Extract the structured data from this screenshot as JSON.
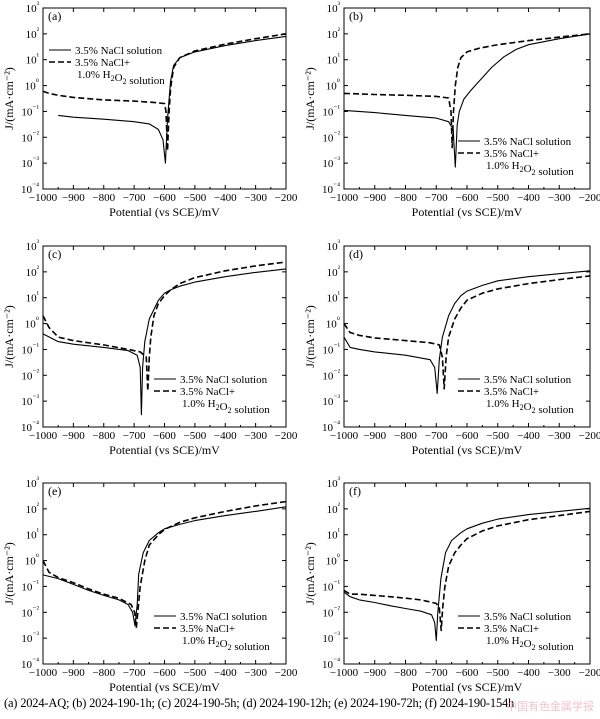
{
  "chart_data": [
    {
      "type": "line",
      "panel_label": "(a)",
      "xlabel": "Potential (vs SCE)/mV",
      "ylabel": "J/(mA·cm⁻²)",
      "xlim": [
        -1000,
        -200
      ],
      "ylim_log10": [
        -4,
        3
      ],
      "x_ticks": [
        "−1000",
        "−900",
        "−800",
        "−700",
        "−600",
        "−500",
        "−400",
        "−300",
        "−200"
      ],
      "y_ticks": [
        "10⁻⁴",
        "10⁻³",
        "10⁻²",
        "10⁻¹",
        "10⁰",
        "10¹",
        "10²",
        "10³"
      ],
      "legend_position": "top-left",
      "series": [
        {
          "name": "3.5% NaCl solution",
          "style": "solid",
          "x": [
            -950,
            -900,
            -800,
            -700,
            -650,
            -620,
            -605,
            -597,
            -590,
            -585,
            -580,
            -570,
            -550,
            -500,
            -400,
            -300,
            -200
          ],
          "y": [
            0.07,
            0.06,
            0.05,
            0.04,
            0.033,
            0.02,
            0.008,
            0.001,
            0.05,
            0.3,
            1.5,
            6,
            12,
            20,
            35,
            55,
            80
          ]
        },
        {
          "name": "3.5% NaCl+ 1.0% H₂O₂ solution",
          "style": "dashed",
          "x": [
            -1000,
            -980,
            -950,
            -900,
            -800,
            -700,
            -630,
            -600,
            -595,
            -590,
            -585,
            -580,
            -570,
            -550,
            -500,
            -400,
            -300,
            -200
          ],
          "y": [
            0.6,
            0.5,
            0.42,
            0.35,
            0.28,
            0.25,
            0.22,
            0.2,
            0.1,
            0.003,
            0.1,
            0.8,
            5,
            12,
            22,
            40,
            65,
            100
          ]
        }
      ]
    },
    {
      "type": "line",
      "panel_label": "(b)",
      "xlabel": "Potential (vs SCE)/mV",
      "ylabel": "J/(mA·cm⁻²)",
      "xlim": [
        -1000,
        -200
      ],
      "ylim_log10": [
        -4,
        3
      ],
      "x_ticks": [
        "−1000",
        "−900",
        "−800",
        "−700",
        "−600",
        "−500",
        "−400",
        "−300",
        "−200"
      ],
      "y_ticks": [
        "10⁻⁴",
        "10⁻³",
        "10⁻²",
        "10⁻¹",
        "10⁰",
        "10¹",
        "10²",
        "10³"
      ],
      "legend_position": "bottom-right",
      "series": [
        {
          "name": "3.5% NaCl solution",
          "style": "solid",
          "x": [
            -1000,
            -900,
            -800,
            -700,
            -660,
            -645,
            -638,
            -632,
            -625,
            -610,
            -590,
            -560,
            -520,
            -480,
            -440,
            -400,
            -300,
            -200
          ],
          "y": [
            0.11,
            0.09,
            0.07,
            0.055,
            0.04,
            0.02,
            0.0007,
            0.03,
            0.1,
            0.3,
            0.6,
            1.5,
            5,
            13,
            25,
            38,
            65,
            100
          ]
        },
        {
          "name": "3.5% NaCl+ 1.0% H₂O₂ solution",
          "style": "dashed",
          "x": [
            -1000,
            -900,
            -800,
            -700,
            -660,
            -652,
            -648,
            -644,
            -638,
            -630,
            -620,
            -600,
            -560,
            -500,
            -400,
            -300,
            -200
          ],
          "y": [
            0.5,
            0.45,
            0.42,
            0.38,
            0.33,
            0.1,
            0.004,
            0.1,
            1,
            5,
            12,
            20,
            28,
            38,
            55,
            75,
            100
          ]
        }
      ]
    },
    {
      "type": "line",
      "panel_label": "(c)",
      "xlabel": "Potential (vs SCE)/mV",
      "ylabel": "J/(mA·cm⁻²)",
      "xlim": [
        -1000,
        -200
      ],
      "ylim_log10": [
        -4,
        3
      ],
      "x_ticks": [
        "−1000",
        "−900",
        "−800",
        "−700",
        "−600",
        "−500",
        "−400",
        "−300",
        "−200"
      ],
      "y_ticks": [
        "10⁻⁴",
        "10⁻³",
        "10⁻²",
        "10⁻¹",
        "10⁰",
        "10¹",
        "10²",
        "10³"
      ],
      "legend_position": "bottom-right",
      "series": [
        {
          "name": "3.5% NaCl solution",
          "style": "solid",
          "x": [
            -1000,
            -950,
            -900,
            -800,
            -720,
            -690,
            -680,
            -676,
            -672,
            -665,
            -650,
            -620,
            -600,
            -580,
            -550,
            -500,
            -400,
            -300,
            -200
          ],
          "y": [
            0.4,
            0.2,
            0.16,
            0.12,
            0.09,
            0.06,
            0.02,
            0.0003,
            0.02,
            0.2,
            1.5,
            8,
            15,
            20,
            28,
            40,
            65,
            95,
            130
          ]
        },
        {
          "name": "3.5% NaCl+ 1.0% H₂O₂ solution",
          "style": "dashed",
          "x": [
            -1000,
            -980,
            -950,
            -900,
            -800,
            -720,
            -680,
            -660,
            -655,
            -650,
            -645,
            -635,
            -620,
            -600,
            -580,
            -550,
            -500,
            -400,
            -300,
            -200
          ],
          "y": [
            2,
            0.7,
            0.3,
            0.22,
            0.15,
            0.1,
            0.08,
            0.05,
            0.0025,
            0.05,
            0.3,
            2,
            6,
            12,
            20,
            35,
            60,
            110,
            170,
            240
          ]
        }
      ]
    },
    {
      "type": "line",
      "panel_label": "(d)",
      "xlabel": "Potential (vs SCE)/mV",
      "ylabel": "J/(mA·cm⁻²)",
      "xlim": [
        -1000,
        -200
      ],
      "ylim_log10": [
        -4,
        3
      ],
      "x_ticks": [
        "−1000",
        "−900",
        "−800",
        "−700",
        "−600",
        "−500",
        "−400",
        "−300",
        "−200"
      ],
      "y_ticks": [
        "10⁻⁴",
        "10⁻³",
        "10⁻²",
        "10⁻¹",
        "10⁰",
        "10¹",
        "10²",
        "10³"
      ],
      "legend_position": "bottom-right",
      "series": [
        {
          "name": "3.5% NaCl solution",
          "style": "solid",
          "x": [
            -1000,
            -980,
            -950,
            -900,
            -800,
            -720,
            -705,
            -697,
            -690,
            -680,
            -660,
            -640,
            -620,
            -600,
            -550,
            -500,
            -400,
            -300,
            -200
          ],
          "y": [
            0.3,
            0.12,
            0.1,
            0.08,
            0.06,
            0.04,
            0.02,
            0.002,
            0.04,
            0.3,
            2,
            6,
            12,
            18,
            30,
            45,
            65,
            85,
            110
          ]
        },
        {
          "name": "3.5% NaCl+ 1.0% H₂O₂ solution",
          "style": "dashed",
          "x": [
            -1000,
            -980,
            -950,
            -900,
            -800,
            -720,
            -690,
            -680,
            -674,
            -668,
            -660,
            -640,
            -620,
            -600,
            -550,
            -500,
            -400,
            -300,
            -200
          ],
          "y": [
            1,
            0.45,
            0.35,
            0.28,
            0.22,
            0.18,
            0.15,
            0.05,
            0.003,
            0.05,
            0.3,
            1.5,
            4,
            8,
            15,
            22,
            35,
            50,
            70
          ]
        }
      ]
    },
    {
      "type": "line",
      "panel_label": "(e)",
      "xlabel": "Potential (vs SCE)/mV",
      "ylabel": "J/(mA·cm⁻²)",
      "xlim": [
        -1000,
        -200
      ],
      "ylim_log10": [
        -4,
        3
      ],
      "x_ticks": [
        "−1000",
        "−900",
        "−800",
        "−700",
        "−600",
        "−500",
        "−400",
        "−300",
        "−200"
      ],
      "y_ticks": [
        "10⁻⁴",
        "10⁻³",
        "10⁻²",
        "10⁻¹",
        "10⁰",
        "10¹",
        "10²",
        "10³"
      ],
      "legend_position": "bottom-right",
      "series": [
        {
          "name": "3.5% NaCl solution",
          "style": "solid",
          "x": [
            -1000,
            -950,
            -900,
            -850,
            -800,
            -750,
            -720,
            -705,
            -697,
            -690,
            -685,
            -670,
            -650,
            -620,
            -600,
            -550,
            -500,
            -400,
            -300,
            -200
          ],
          "y": [
            0.28,
            0.2,
            0.12,
            0.07,
            0.045,
            0.03,
            0.02,
            0.01,
            0.003,
            0.02,
            0.3,
            2,
            6,
            12,
            17,
            25,
            35,
            55,
            80,
            120
          ]
        },
        {
          "name": "3.5% NaCl+ 1.0% H₂O₂ solution",
          "style": "dashed",
          "x": [
            -1000,
            -980,
            -950,
            -900,
            -850,
            -800,
            -750,
            -710,
            -698,
            -693,
            -688,
            -680,
            -665,
            -650,
            -620,
            -600,
            -550,
            -500,
            -400,
            -300,
            -200
          ],
          "y": [
            1,
            0.35,
            0.22,
            0.14,
            0.08,
            0.05,
            0.035,
            0.02,
            0.01,
            0.0025,
            0.01,
            0.1,
            1,
            4,
            10,
            16,
            30,
            45,
            80,
            130,
            190
          ]
        }
      ]
    },
    {
      "type": "line",
      "panel_label": "(f)",
      "xlabel": "Potential (vs SCE)/mV",
      "ylabel": "J/(mA·cm⁻²)",
      "xlim": [
        -1000,
        -200
      ],
      "ylim_log10": [
        -4,
        3
      ],
      "x_ticks": [
        "−1000",
        "−900",
        "−800",
        "−700",
        "−600",
        "−500",
        "−400",
        "−300",
        "−200"
      ],
      "y_ticks": [
        "10⁻⁴",
        "10⁻³",
        "10⁻²",
        "10⁻¹",
        "10⁰",
        "10¹",
        "10²",
        "10³"
      ],
      "legend_position": "bottom-right",
      "series": [
        {
          "name": "3.5% NaCl solution",
          "style": "solid",
          "x": [
            -1000,
            -980,
            -950,
            -900,
            -850,
            -800,
            -750,
            -715,
            -705,
            -700,
            -695,
            -685,
            -670,
            -650,
            -620,
            -600,
            -550,
            -500,
            -400,
            -300,
            -200
          ],
          "y": [
            0.06,
            0.04,
            0.03,
            0.024,
            0.018,
            0.014,
            0.011,
            0.008,
            0.004,
            0.0008,
            0.01,
            0.2,
            2,
            6,
            12,
            17,
            28,
            40,
            60,
            80,
            105
          ]
        },
        {
          "name": "3.5% NaCl+ 1.0% H₂O₂ solution",
          "style": "dashed",
          "x": [
            -1000,
            -980,
            -950,
            -900,
            -850,
            -800,
            -750,
            -700,
            -690,
            -684,
            -679,
            -672,
            -660,
            -640,
            -620,
            -600,
            -550,
            -500,
            -400,
            -300,
            -200
          ],
          "y": [
            0.07,
            0.05,
            0.05,
            0.045,
            0.04,
            0.035,
            0.03,
            0.022,
            0.015,
            0.002,
            0.015,
            0.1,
            0.6,
            2,
            4,
            7,
            14,
            22,
            38,
            55,
            80
          ]
        }
      ]
    }
  ],
  "caption": "(a) 2024-AQ; (b) 2024-190-1h; (c) 2024-190-5h; (d) 2024-190-12h; (e) 2024-190-72h; (f) 2024-190-154h",
  "watermark": "中国有色金属学报"
}
